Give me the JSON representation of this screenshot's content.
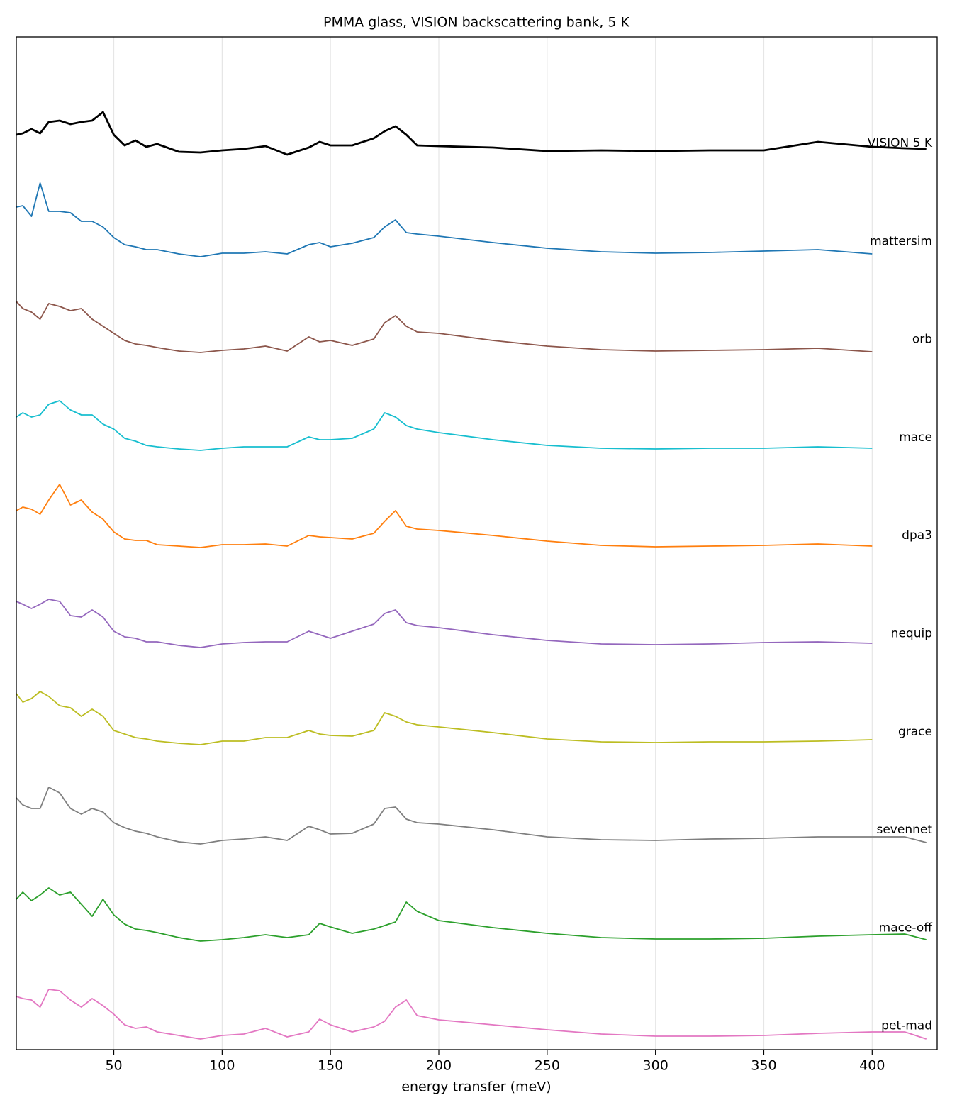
{
  "chart_data": {
    "type": "line",
    "title": "PMMA glass, VISION backscattering bank, 5 K",
    "x_label": "energy transfer (meV)",
    "xlim": [
      5,
      430
    ],
    "ylim": [
      0,
      14.28
    ],
    "xticks": [
      50,
      100,
      150,
      200,
      250,
      300,
      350,
      400
    ],
    "grid": true,
    "x": [
      5,
      8,
      12,
      16,
      20,
      25,
      30,
      35,
      40,
      45,
      50,
      55,
      60,
      65,
      70,
      80,
      90,
      100,
      110,
      120,
      130,
      140,
      145,
      150,
      160,
      170,
      175,
      180,
      185,
      190,
      200,
      225,
      250,
      275,
      300,
      325,
      350,
      375,
      400,
      415,
      425
    ],
    "series": [
      {
        "name": "VISION 5 K",
        "color": "#000000",
        "values": [
          12.9,
          12.92,
          12.98,
          12.92,
          13.08,
          13.1,
          13.05,
          13.08,
          13.1,
          13.22,
          12.9,
          12.75,
          12.82,
          12.73,
          12.77,
          12.66,
          12.65,
          12.68,
          12.7,
          12.74,
          12.62,
          12.72,
          12.8,
          12.75,
          12.75,
          12.85,
          12.95,
          13.02,
          12.9,
          12.75,
          12.74,
          12.72,
          12.67,
          12.68,
          12.67,
          12.68,
          12.68,
          12.8,
          12.73,
          12.71,
          12.7
        ]
      },
      {
        "name": "mattersim",
        "color": "#1f77b4",
        "values": [
          11.88,
          11.9,
          11.75,
          12.22,
          11.82,
          11.82,
          11.8,
          11.68,
          11.68,
          11.6,
          11.45,
          11.35,
          11.32,
          11.28,
          11.28,
          11.22,
          11.18,
          11.23,
          11.23,
          11.25,
          11.22,
          11.35,
          11.38,
          11.32,
          11.37,
          11.45,
          11.6,
          11.7,
          11.52,
          11.5,
          11.47,
          11.38,
          11.3,
          11.25,
          11.23,
          11.24,
          11.26,
          11.28,
          11.22,
          null,
          null
        ]
      },
      {
        "name": "orb",
        "color": "#8c564b",
        "values": [
          10.55,
          10.45,
          10.4,
          10.3,
          10.52,
          10.48,
          10.42,
          10.45,
          10.3,
          10.2,
          10.1,
          10.0,
          9.95,
          9.93,
          9.9,
          9.85,
          9.83,
          9.86,
          9.88,
          9.92,
          9.85,
          10.05,
          9.98,
          10.0,
          9.93,
          10.02,
          10.25,
          10.35,
          10.2,
          10.12,
          10.1,
          10.0,
          9.92,
          9.87,
          9.85,
          9.86,
          9.87,
          9.89,
          9.84,
          null,
          null
        ]
      },
      {
        "name": "mace",
        "color": "#17becf",
        "values": [
          8.92,
          8.98,
          8.92,
          8.95,
          9.1,
          9.15,
          9.02,
          8.95,
          8.95,
          8.82,
          8.75,
          8.62,
          8.58,
          8.52,
          8.5,
          8.47,
          8.45,
          8.48,
          8.5,
          8.5,
          8.5,
          8.64,
          8.6,
          8.6,
          8.62,
          8.75,
          8.98,
          8.92,
          8.8,
          8.75,
          8.7,
          8.6,
          8.52,
          8.48,
          8.47,
          8.48,
          8.48,
          8.5,
          8.48,
          null,
          null
        ]
      },
      {
        "name": "dpa3",
        "color": "#ff7f0e",
        "values": [
          7.6,
          7.65,
          7.62,
          7.55,
          7.75,
          7.97,
          7.68,
          7.75,
          7.58,
          7.48,
          7.3,
          7.2,
          7.18,
          7.18,
          7.12,
          7.1,
          7.08,
          7.12,
          7.12,
          7.13,
          7.1,
          7.25,
          7.23,
          7.22,
          7.2,
          7.28,
          7.45,
          7.6,
          7.38,
          7.34,
          7.32,
          7.25,
          7.17,
          7.11,
          7.09,
          7.1,
          7.11,
          7.13,
          7.1,
          null,
          null
        ]
      },
      {
        "name": "nequip",
        "color": "#9467bd",
        "values": [
          6.32,
          6.28,
          6.22,
          6.28,
          6.35,
          6.32,
          6.12,
          6.1,
          6.2,
          6.1,
          5.9,
          5.82,
          5.8,
          5.75,
          5.75,
          5.7,
          5.67,
          5.72,
          5.74,
          5.75,
          5.75,
          5.9,
          5.85,
          5.8,
          5.9,
          6.0,
          6.15,
          6.2,
          6.02,
          5.98,
          5.95,
          5.85,
          5.77,
          5.72,
          5.71,
          5.72,
          5.74,
          5.75,
          5.73,
          null,
          null
        ]
      },
      {
        "name": "grace",
        "color": "#bcbd22",
        "values": [
          5.02,
          4.9,
          4.95,
          5.05,
          4.98,
          4.85,
          4.82,
          4.7,
          4.8,
          4.7,
          4.5,
          4.45,
          4.4,
          4.38,
          4.35,
          4.32,
          4.3,
          4.35,
          4.35,
          4.4,
          4.4,
          4.5,
          4.45,
          4.43,
          4.42,
          4.5,
          4.75,
          4.7,
          4.62,
          4.58,
          4.55,
          4.47,
          4.38,
          4.34,
          4.33,
          4.34,
          4.34,
          4.35,
          4.37,
          null,
          null
        ]
      },
      {
        "name": "sevennet",
        "color": "#7f7f7f",
        "values": [
          3.55,
          3.45,
          3.4,
          3.4,
          3.7,
          3.62,
          3.4,
          3.32,
          3.4,
          3.35,
          3.2,
          3.13,
          3.08,
          3.05,
          3.0,
          2.93,
          2.9,
          2.95,
          2.97,
          3.0,
          2.95,
          3.15,
          3.1,
          3.04,
          3.05,
          3.18,
          3.4,
          3.42,
          3.25,
          3.2,
          3.18,
          3.1,
          3.0,
          2.96,
          2.95,
          2.97,
          2.98,
          3.0,
          3.0,
          3.0,
          2.92
        ]
      },
      {
        "name": "mace-off",
        "color": "#2ca02c",
        "values": [
          2.12,
          2.22,
          2.1,
          2.18,
          2.28,
          2.18,
          2.22,
          2.05,
          1.88,
          2.12,
          1.9,
          1.77,
          1.7,
          1.68,
          1.65,
          1.58,
          1.53,
          1.55,
          1.58,
          1.62,
          1.58,
          1.62,
          1.78,
          1.73,
          1.64,
          1.7,
          1.75,
          1.8,
          2.08,
          1.95,
          1.82,
          1.72,
          1.64,
          1.58,
          1.56,
          1.56,
          1.57,
          1.6,
          1.62,
          1.63,
          1.55
        ]
      },
      {
        "name": "pet-mad",
        "color": "#e377c2",
        "values": [
          0.75,
          0.72,
          0.7,
          0.6,
          0.85,
          0.83,
          0.7,
          0.6,
          0.72,
          0.62,
          0.5,
          0.35,
          0.3,
          0.32,
          0.25,
          0.2,
          0.15,
          0.2,
          0.22,
          0.3,
          0.18,
          0.25,
          0.43,
          0.35,
          0.25,
          0.32,
          0.4,
          0.6,
          0.7,
          0.48,
          0.42,
          0.35,
          0.28,
          0.22,
          0.19,
          0.19,
          0.2,
          0.23,
          0.25,
          0.25,
          0.15
        ]
      }
    ]
  }
}
